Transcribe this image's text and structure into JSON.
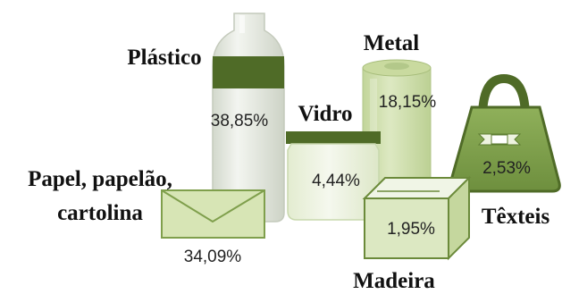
{
  "chart_data": {
    "type": "pictograph",
    "title": "",
    "items": [
      {
        "category": "Plástico",
        "value": "38,85%",
        "icon": "bottle"
      },
      {
        "category": "Papel, papelão, cartolina",
        "category_lines": [
          "Papel, papelão,",
          "cartolina"
        ],
        "value": "34,09%",
        "icon": "envelope"
      },
      {
        "category": "Metal",
        "value": "18,15%",
        "icon": "can"
      },
      {
        "category": "Vidro",
        "value": "4,44%",
        "icon": "jar"
      },
      {
        "category": "Têxteis",
        "value": "2,53%",
        "icon": "bag"
      },
      {
        "category": "Madeira",
        "value": "1,95%",
        "icon": "crate"
      }
    ]
  },
  "colors": {
    "dark_green": "#4e6b26",
    "mid_green": "#7f9f4c",
    "light_green": "#cfe0a8",
    "pale_green": "#e6efd2",
    "bottle_grey": "#e4e8e0",
    "outline": "#9cb47a"
  }
}
